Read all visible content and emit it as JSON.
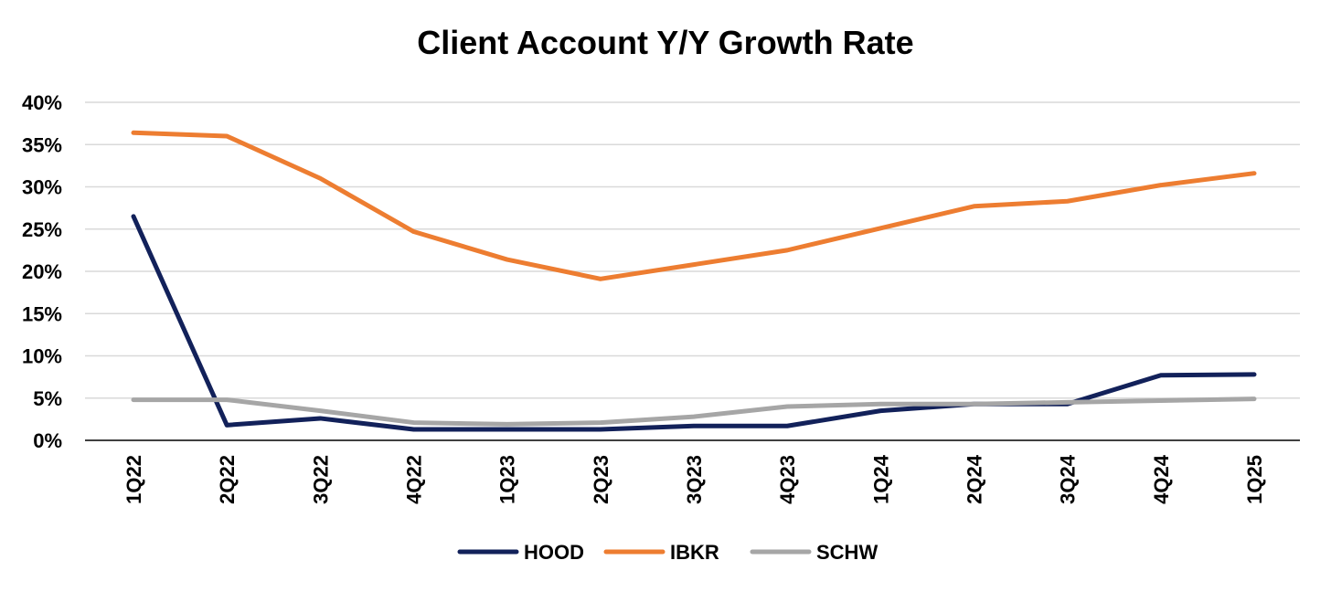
{
  "chart_data": {
    "type": "line",
    "title": "Client Account Y/Y Growth Rate",
    "xlabel": "",
    "ylabel": "",
    "categories": [
      "1Q22",
      "2Q22",
      "3Q22",
      "4Q22",
      "1Q23",
      "2Q23",
      "3Q23",
      "4Q23",
      "1Q24",
      "2Q24",
      "3Q24",
      "4Q24",
      "1Q25"
    ],
    "y_ticks": [
      "0%",
      "5%",
      "10%",
      "15%",
      "20%",
      "25%",
      "30%",
      "35%",
      "40%"
    ],
    "y_tick_values": [
      0,
      5,
      10,
      15,
      20,
      25,
      30,
      35,
      40
    ],
    "ylim": [
      0,
      40
    ],
    "grid": true,
    "legend_position": "bottom",
    "series": [
      {
        "name": "HOOD",
        "color": "#12215a",
        "values": [
          26.5,
          1.8,
          2.6,
          1.3,
          1.3,
          1.3,
          1.7,
          1.7,
          3.5,
          4.3,
          4.3,
          7.7,
          7.8
        ]
      },
      {
        "name": "IBKR",
        "color": "#ed7d31",
        "values": [
          36.4,
          36.0,
          31.0,
          24.7,
          21.4,
          19.1,
          20.8,
          22.5,
          25.1,
          27.7,
          28.3,
          30.2,
          31.6
        ]
      },
      {
        "name": "SCHW",
        "color": "#a6a6a6",
        "values": [
          4.8,
          4.8,
          3.5,
          2.1,
          1.9,
          2.1,
          2.8,
          4.0,
          4.3,
          4.3,
          4.5,
          4.7,
          4.9
        ]
      }
    ]
  }
}
